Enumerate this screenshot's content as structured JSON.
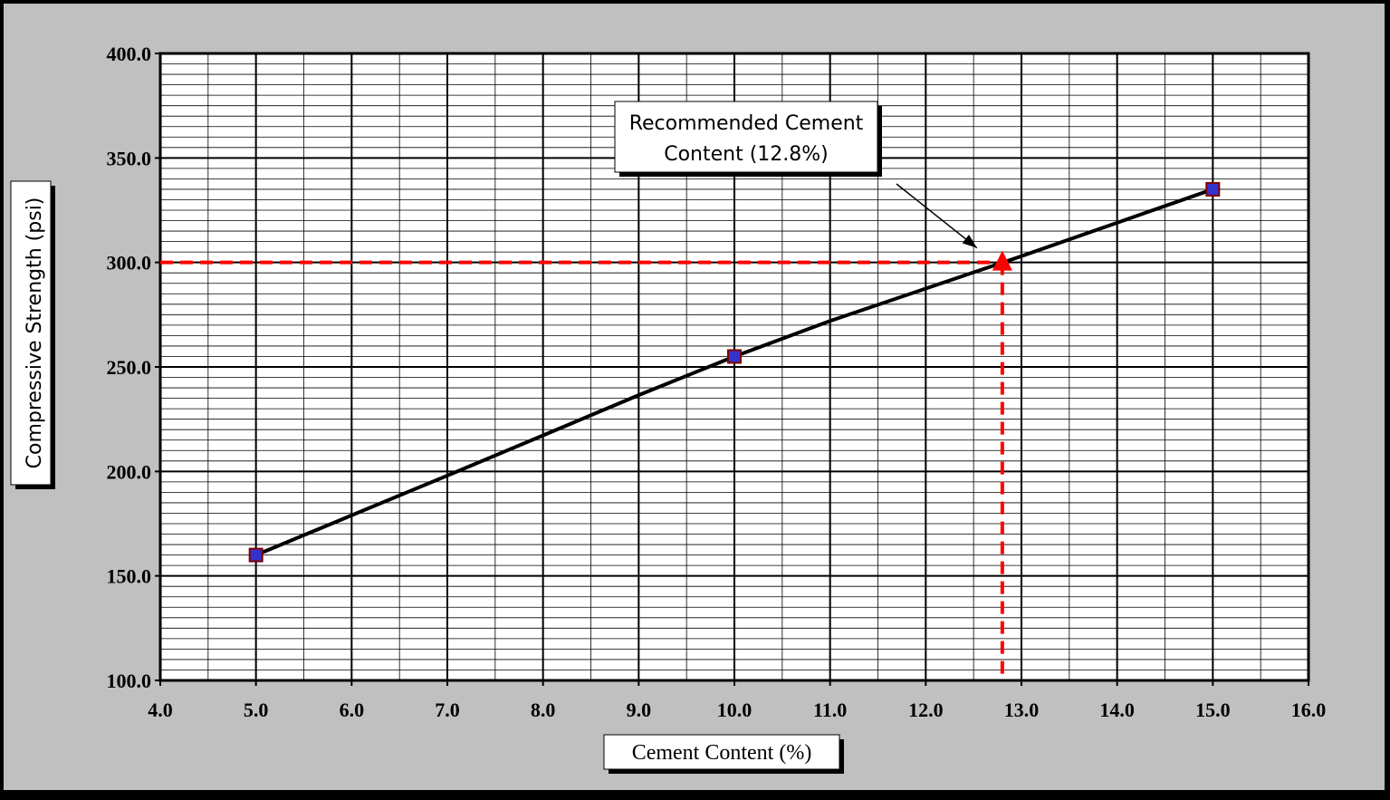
{
  "colors": {
    "background": "#c0c0c0",
    "plot_area": "#ffffff",
    "grid": "#000000",
    "series_line": "#000000",
    "marker_fill": "#3333cc",
    "marker_border": "#800000",
    "target_line": "#ff0000",
    "target_marker": "#ff0000"
  },
  "chart_data": {
    "type": "line",
    "title": "",
    "xlabel": "Cement Content (%)",
    "ylabel": "Compressive Strength (psi)",
    "xlim": [
      4.0,
      16.0
    ],
    "ylim": [
      100.0,
      400.0
    ],
    "x_ticks": [
      "4.0",
      "5.0",
      "6.0",
      "7.0",
      "8.0",
      "9.0",
      "10.0",
      "11.0",
      "12.0",
      "13.0",
      "14.0",
      "15.0",
      "16.0"
    ],
    "y_ticks": [
      "100.0",
      "150.0",
      "200.0",
      "250.0",
      "300.0",
      "350.0",
      "400.0"
    ],
    "grid": true,
    "series": [
      {
        "marker": "square",
        "points": [
          {
            "x": 5.0,
            "y": 160.0
          },
          {
            "x": 10.0,
            "y": 255.0
          },
          {
            "x": 15.0,
            "y": 335.0
          }
        ],
        "trend_line": [
          {
            "x": 5.0,
            "y": 160.0
          },
          {
            "x": 7.0,
            "y": 198.0
          },
          {
            "x": 9.0,
            "y": 236.5
          },
          {
            "x": 10.0,
            "y": 255.0
          },
          {
            "x": 11.0,
            "y": 272.0
          },
          {
            "x": 12.0,
            "y": 287.5
          },
          {
            "x": 13.0,
            "y": 303.0
          },
          {
            "x": 14.0,
            "y": 319.0
          },
          {
            "x": 15.0,
            "y": 335.0
          }
        ]
      }
    ],
    "target": {
      "x": 12.8,
      "y": 300.0
    },
    "annotation": {
      "lines": [
        "Recommended Cement",
        "Content (12.8%)"
      ]
    }
  }
}
